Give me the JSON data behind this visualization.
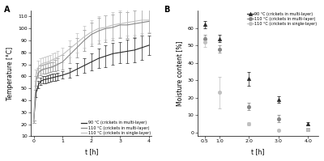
{
  "panel_A": {
    "title": "A",
    "xlabel": "t [h]",
    "ylabel": "Temperature [°C]",
    "xlim": [
      -0.1,
      4.1
    ],
    "ylim": [
      10,
      115
    ],
    "yticks": [
      10,
      20,
      30,
      40,
      50,
      60,
      70,
      80,
      90,
      100,
      110
    ],
    "xticks": [
      0,
      1,
      2,
      3,
      4
    ],
    "series": [
      {
        "label": "90 °C (crickets in multi-layer)",
        "color": "#2a2a2a",
        "t": [
          0,
          0.083,
          0.167,
          0.25,
          0.333,
          0.417,
          0.5,
          0.583,
          0.667,
          0.75,
          0.833,
          1.0,
          1.25,
          1.5,
          1.75,
          2.0,
          2.25,
          2.5,
          2.75,
          3.0,
          3.25,
          3.5,
          3.75,
          4.0
        ],
        "mean": [
          22,
          46,
          53,
          56,
          57,
          57.5,
          58,
          58.5,
          59,
          59.5,
          60,
          61,
          63,
          66,
          69,
          72,
          75,
          77,
          79,
          80,
          81,
          82,
          84,
          86
        ],
        "err": [
          1,
          3,
          3,
          3,
          3,
          3,
          3,
          3,
          3,
          3,
          3,
          3,
          4,
          5,
          6,
          7,
          8,
          9,
          9,
          9,
          10,
          10,
          10,
          8
        ]
      },
      {
        "label": "110 °C (crickets in multi-layer)",
        "color": "#888888",
        "t": [
          0,
          0.083,
          0.167,
          0.25,
          0.333,
          0.417,
          0.5,
          0.583,
          0.667,
          0.75,
          0.833,
          1.0,
          1.25,
          1.5,
          1.75,
          2.0,
          2.25,
          2.5,
          2.75,
          3.0,
          3.25,
          3.5,
          3.75,
          4.0
        ],
        "mean": [
          22,
          56,
          63,
          65,
          66,
          66.5,
          67,
          67.5,
          68,
          69,
          70,
          72,
          78,
          84,
          90,
          95,
          98,
          100,
          101,
          103,
          103,
          104,
          105,
          106
        ],
        "err": [
          1,
          4,
          4,
          4,
          4,
          4,
          4,
          4,
          4,
          5,
          5,
          6,
          7,
          8,
          9,
          10,
          11,
          11,
          11,
          11,
          11,
          11,
          11,
          10
        ]
      },
      {
        "label": "110 °C (crickets in single-layer)",
        "color": "#c0c0c0",
        "t": [
          0,
          0.083,
          0.167,
          0.25,
          0.333,
          0.417,
          0.5,
          0.583,
          0.667,
          0.75,
          0.833,
          1.0,
          1.25,
          1.5,
          1.75,
          2.0,
          2.25,
          2.5,
          2.75,
          3.0,
          3.25,
          3.5,
          3.75,
          4.0
        ],
        "mean": [
          22,
          61,
          68,
          70,
          71,
          71.5,
          72,
          73,
          74,
          75,
          76,
          78,
          83,
          88,
          93,
          97,
          100,
          101,
          103,
          104,
          105,
          106,
          107,
          107
        ],
        "err": [
          1,
          5,
          5,
          5,
          5,
          5,
          5,
          5,
          5,
          5,
          5,
          6,
          7,
          8,
          9,
          10,
          10,
          10,
          11,
          11,
          11,
          11,
          11,
          10
        ]
      }
    ]
  },
  "panel_B": {
    "title": "B",
    "xlabel": "t [h]",
    "ylabel": "Moisture content [%]",
    "xlim": [
      0.25,
      4.35
    ],
    "ylim": [
      -2,
      70
    ],
    "yticks": [
      0,
      10,
      20,
      30,
      40,
      50,
      60
    ],
    "xticks": [
      0.5,
      1,
      2,
      3,
      4
    ],
    "series": [
      {
        "label": "90 °C (crickets in multi-layer)",
        "color": "#2a2a2a",
        "marker": "^",
        "t": [
          0.5,
          1.0,
          2.0,
          3.0,
          4.0
        ],
        "mean": [
          62,
          54,
          31,
          19,
          5
        ],
        "err": [
          2,
          2,
          4,
          2,
          1
        ]
      },
      {
        "label": "110 °C (crickets in multi-layer)",
        "color": "#888888",
        "marker": "o",
        "t": [
          0.5,
          1.0,
          2.0,
          3.0,
          4.0
        ],
        "mean": [
          54,
          48,
          15,
          8,
          2
        ],
        "err": [
          2,
          2,
          2,
          2,
          1
        ]
      },
      {
        "label": "110 °C (crickets in single-layer)",
        "color": "#c0c0c0",
        "marker": "o",
        "t": [
          0.5,
          1.0,
          2.0,
          3.0,
          4.0
        ],
        "mean": [
          52,
          23,
          5,
          1.5,
          2
        ],
        "err": [
          3,
          9,
          1,
          0.5,
          1
        ]
      }
    ]
  },
  "background_color": "#ffffff"
}
